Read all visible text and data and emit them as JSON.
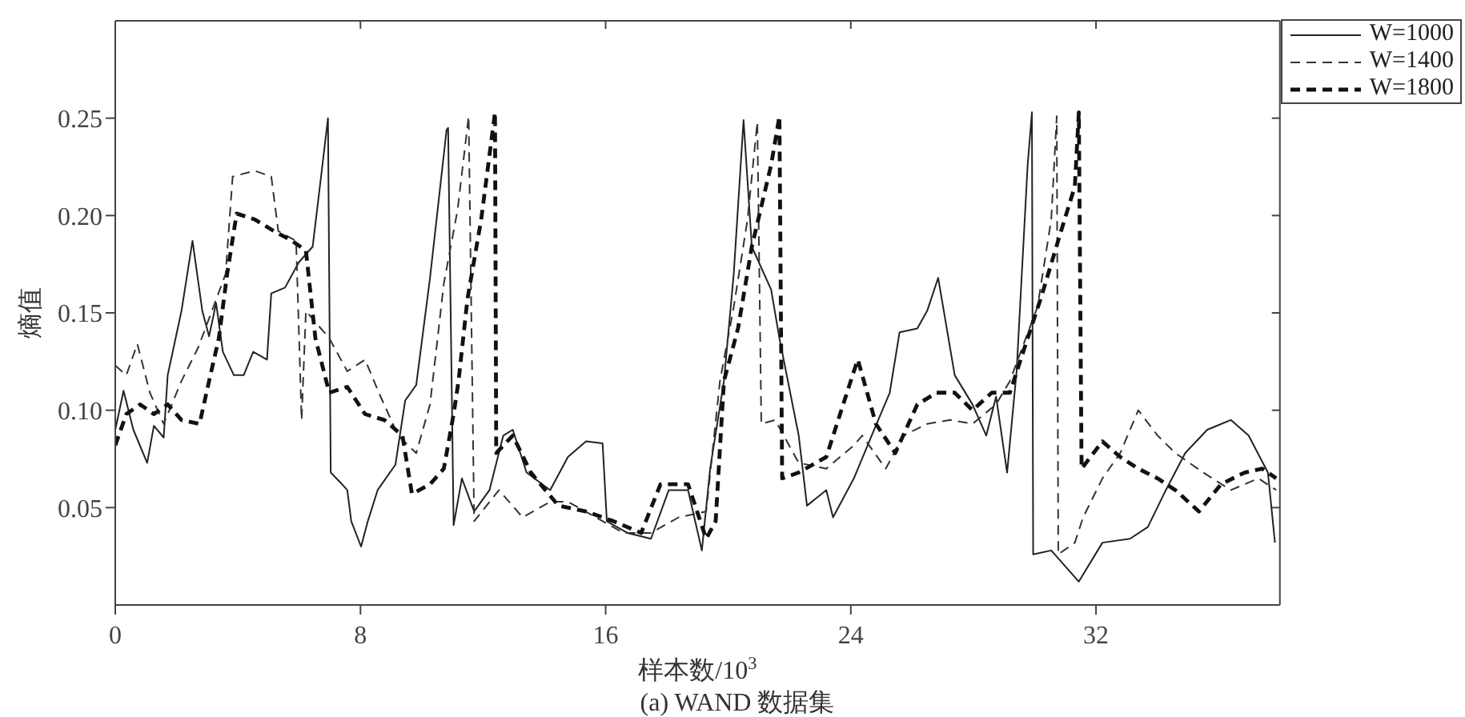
{
  "chart_data": {
    "type": "line",
    "title": "(a) WAND 数据集",
    "xlabel": "样本数/10$^{3}$",
    "ylabel": "熵值",
    "xlim": [
      0,
      38
    ],
    "ylim": [
      0,
      0.3
    ],
    "xticks": [
      0,
      8,
      16,
      24,
      32
    ],
    "yticks": [
      0.05,
      {
        "value": 0.1,
        "label": "0.10"
      },
      0.15,
      {
        "value": 0.2,
        "label": "0.20"
      },
      0.25
    ],
    "grid": false,
    "legend": "top right",
    "marker": "none",
    "series": [
      {
        "name": "W=1000",
        "color": "#222222",
        "line_style": "solid",
        "x": [
          0,
          0.27,
          0.59,
          1.04,
          1.26,
          1.58,
          1.71,
          2.16,
          2.52,
          2.84,
          3.06,
          3.29,
          3.51,
          3.87,
          4.19,
          4.5,
          4.95,
          5.09,
          5.54,
          5.99,
          6.44,
          6.76,
          6.94,
          7.03,
          7.34,
          7.57,
          7.7,
          8.02,
          8.24,
          8.56,
          9.14,
          9.46,
          9.82,
          10.27,
          10.81,
          10.86,
          11.04,
          11.31,
          11.71,
          12.21,
          12.66,
          12.97,
          13.42,
          14.19,
          14.77,
          15.36,
          15.9,
          16.04,
          16.71,
          17.48,
          18.06,
          18.69,
          19.14,
          19.41,
          19.86,
          20.18,
          20.5,
          20.77,
          21.4,
          21.67,
          22.3,
          22.57,
          23.2,
          23.42,
          24.1,
          24.68,
          25.27,
          25.59,
          26.17,
          26.49,
          26.85,
          27.39,
          27.97,
          28.42,
          28.74,
          29.1,
          29.41,
          29.77,
          29.91,
          29.95,
          30.54,
          31.44,
          32.21,
          33.11,
          33.69,
          34.28,
          34.91,
          35.63,
          36.4,
          36.98,
          37.61,
          37.84
        ],
        "values": [
          0.09,
          0.11,
          0.09,
          0.073,
          0.092,
          0.086,
          0.118,
          0.151,
          0.187,
          0.151,
          0.138,
          0.155,
          0.13,
          0.118,
          0.118,
          0.13,
          0.126,
          0.16,
          0.163,
          0.176,
          0.184,
          0.226,
          0.25,
          0.068,
          0.063,
          0.059,
          0.043,
          0.03,
          0.043,
          0.059,
          0.072,
          0.105,
          0.113,
          0.168,
          0.244,
          0.245,
          0.041,
          0.065,
          0.048,
          0.059,
          0.087,
          0.09,
          0.068,
          0.059,
          0.076,
          0.084,
          0.083,
          0.043,
          0.037,
          0.034,
          0.059,
          0.059,
          0.028,
          0.07,
          0.115,
          0.17,
          0.249,
          0.184,
          0.162,
          0.137,
          0.087,
          0.051,
          0.059,
          0.045,
          0.065,
          0.087,
          0.109,
          0.14,
          0.142,
          0.151,
          0.168,
          0.118,
          0.103,
          0.087,
          0.107,
          0.068,
          0.12,
          0.226,
          0.253,
          0.026,
          0.028,
          0.012,
          0.032,
          0.034,
          0.04,
          0.059,
          0.078,
          0.09,
          0.095,
          0.087,
          0.068,
          0.032
        ]
      },
      {
        "name": "W=1400",
        "color": "#333333",
        "line_style": "dashed",
        "x": [
          0,
          0.36,
          0.72,
          1.13,
          1.58,
          2.16,
          2.7,
          3.2,
          3.6,
          3.83,
          4.55,
          5.09,
          5.32,
          5.9,
          6.08,
          6.22,
          6.98,
          7.57,
          8.15,
          8.6,
          9.23,
          9.82,
          10.27,
          10.72,
          11.17,
          11.53,
          11.71,
          12.52,
          13.29,
          14.19,
          14.77,
          15.68,
          16.58,
          17.48,
          18.38,
          19.28,
          19.73,
          20.18,
          20.63,
          20.95,
          21.08,
          21.53,
          22.3,
          23.2,
          24.1,
          24.37,
          25.14,
          25.72,
          26.49,
          27.25,
          27.97,
          28.74,
          29.19,
          30.09,
          30.54,
          30.72,
          30.77,
          31.31,
          31.58,
          32.21,
          32.79,
          33.38,
          34.01,
          34.59,
          35.5,
          36.4,
          37.3,
          37.88
        ],
        "values": [
          0.123,
          0.118,
          0.134,
          0.109,
          0.093,
          0.115,
          0.132,
          0.153,
          0.17,
          0.22,
          0.223,
          0.22,
          0.192,
          0.187,
          0.095,
          0.151,
          0.137,
          0.12,
          0.126,
          0.109,
          0.087,
          0.078,
          0.103,
          0.165,
          0.203,
          0.251,
          0.043,
          0.059,
          0.045,
          0.053,
          0.053,
          0.045,
          0.037,
          0.037,
          0.045,
          0.048,
          0.115,
          0.153,
          0.198,
          0.248,
          0.093,
          0.095,
          0.073,
          0.07,
          0.082,
          0.087,
          0.07,
          0.087,
          0.093,
          0.095,
          0.093,
          0.103,
          0.115,
          0.153,
          0.198,
          0.251,
          0.026,
          0.032,
          0.045,
          0.065,
          0.078,
          0.1,
          0.087,
          0.078,
          0.068,
          0.059,
          0.065,
          0.059
        ]
      },
      {
        "name": "W=1800",
        "color": "#111111",
        "line_style": "dashed",
        "x": [
          0,
          0.36,
          0.81,
          1.26,
          1.71,
          2.16,
          2.75,
          3.06,
          3.38,
          3.65,
          3.96,
          4.55,
          5.18,
          5.77,
          6.22,
          6.53,
          6.98,
          7.57,
          8.15,
          8.78,
          9.37,
          9.68,
          10.27,
          10.72,
          11.04,
          11.2,
          11.49,
          11.94,
          12.39,
          12.43,
          12.97,
          13.56,
          14.46,
          15.36,
          16.26,
          17.16,
          17.79,
          18.69,
          19.28,
          19.59,
          19.86,
          20.32,
          20.77,
          21.4,
          21.67,
          21.76,
          22.3,
          23.2,
          23.65,
          24.1,
          24.23,
          24.82,
          25.45,
          26.17,
          26.8,
          27.39,
          27.97,
          28.6,
          29.19,
          29.77,
          30.23,
          30.86,
          31.31,
          31.44,
          31.53,
          32.21,
          32.79,
          33.38,
          34.01,
          34.59,
          35.36,
          36.08,
          36.85,
          37.43,
          37.88
        ],
        "values": [
          0.082,
          0.098,
          0.103,
          0.098,
          0.103,
          0.095,
          0.093,
          0.115,
          0.137,
          0.17,
          0.201,
          0.198,
          0.192,
          0.187,
          0.182,
          0.137,
          0.109,
          0.112,
          0.098,
          0.095,
          0.087,
          0.057,
          0.062,
          0.07,
          0.098,
          0.115,
          0.157,
          0.198,
          0.253,
          0.078,
          0.087,
          0.068,
          0.051,
          0.048,
          0.043,
          0.037,
          0.062,
          0.062,
          0.034,
          0.043,
          0.115,
          0.142,
          0.184,
          0.226,
          0.251,
          0.065,
          0.068,
          0.076,
          0.098,
          0.12,
          0.126,
          0.093,
          0.078,
          0.103,
          0.109,
          0.109,
          0.1,
          0.109,
          0.109,
          0.137,
          0.159,
          0.192,
          0.215,
          0.253,
          0.07,
          0.084,
          0.076,
          0.07,
          0.065,
          0.059,
          0.048,
          0.062,
          0.068,
          0.07,
          0.065
        ]
      }
    ]
  }
}
